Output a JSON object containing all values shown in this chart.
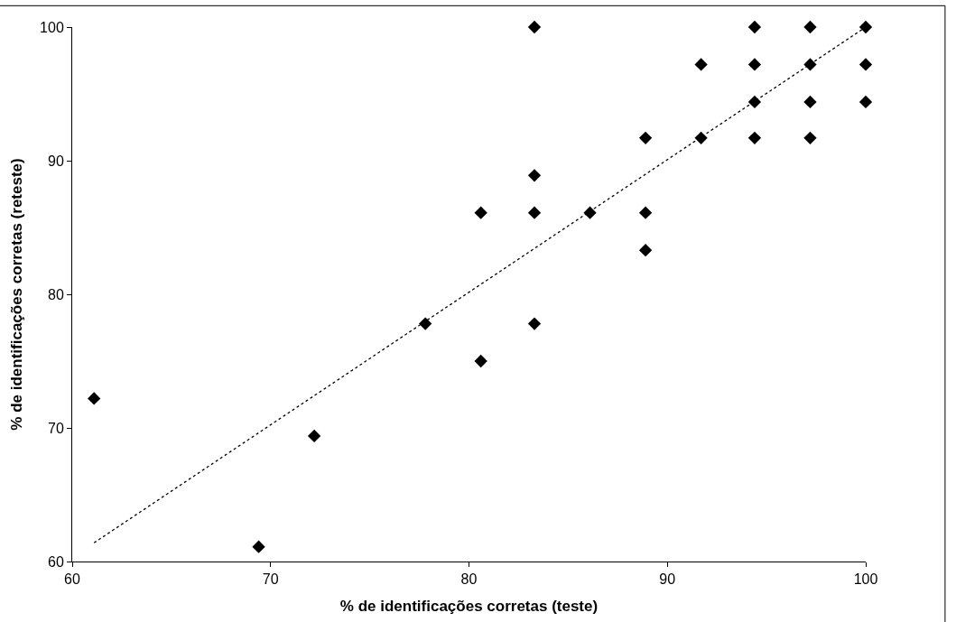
{
  "chart_data": {
    "type": "scatter",
    "xlabel": "% de identificações corretas (teste)",
    "ylabel": "% de identificações corretas (reteste)",
    "xlim": [
      60,
      100
    ],
    "xticks": [
      60,
      70,
      80,
      90,
      100
    ],
    "ylim": [
      60,
      100
    ],
    "yticks": [
      60,
      70,
      80,
      90,
      100
    ],
    "marker": "diamond",
    "series": [
      {
        "color": "#000000",
        "x": [
          61.1,
          69.4,
          72.2,
          77.8,
          80.6,
          80.6,
          83.3,
          83.3,
          83.3,
          83.3,
          86.1,
          88.9,
          88.9,
          88.9,
          91.7,
          91.7,
          94.4,
          94.4,
          94.4,
          94.4,
          97.2,
          97.2,
          97.2,
          97.2,
          100,
          100,
          100
        ],
        "values": [
          72.2,
          61.1,
          69.4,
          77.8,
          75.0,
          86.1,
          100,
          88.9,
          86.1,
          77.8,
          86.1,
          91.7,
          86.1,
          83.3,
          97.2,
          91.7,
          100,
          97.2,
          94.4,
          91.7,
          100,
          97.2,
          94.4,
          91.7,
          100,
          97.2,
          94.4
        ]
      },
      {
        "type": "line",
        "color": "#000000",
        "line_style": "dotted",
        "marker": "none",
        "x": [
          61.1,
          100
        ],
        "values": [
          61.4,
          100
        ]
      }
    ]
  }
}
